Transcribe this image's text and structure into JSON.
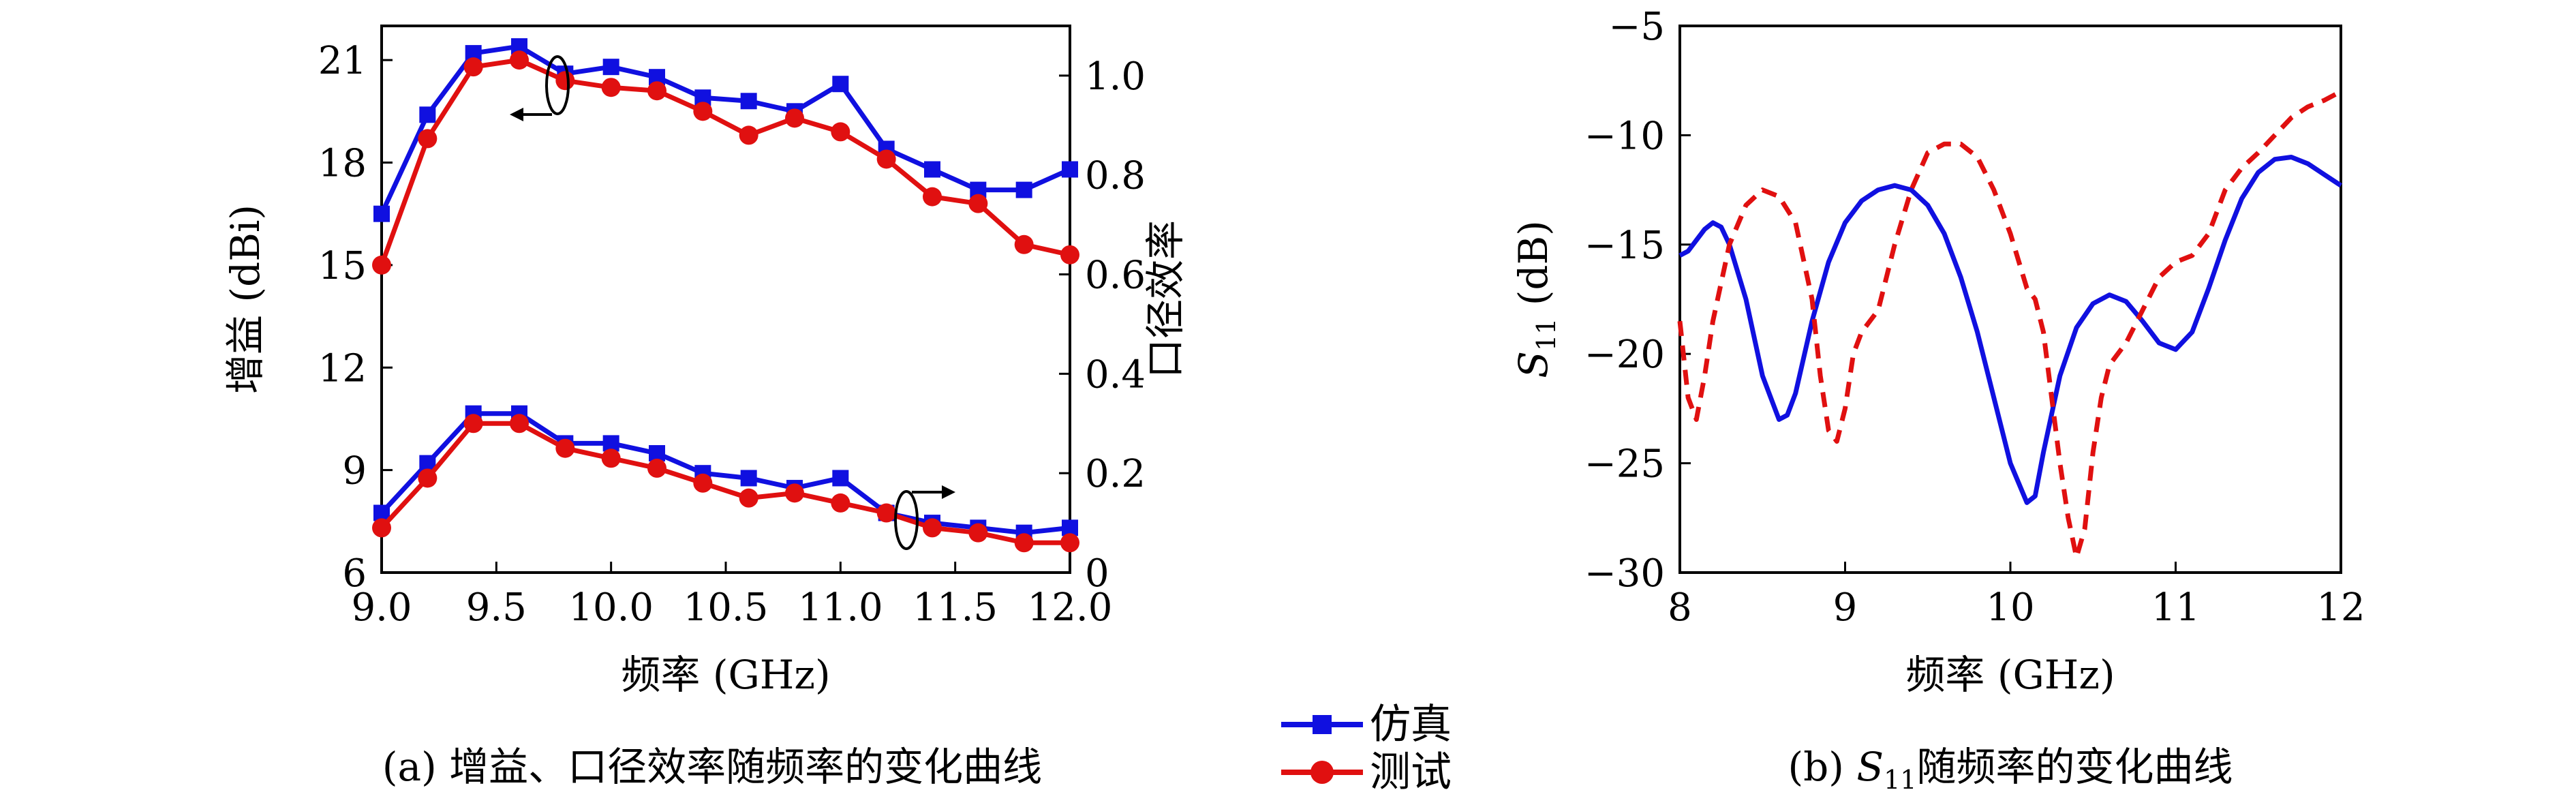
{
  "chart_data": [
    {
      "type": "line",
      "caption": "(a) 增益、口径效率随频率的变化曲线",
      "xlabel": "频率 (GHz)",
      "ylabel": "增益 (dBi)",
      "y2label": "口径效率",
      "xlim": [
        9.0,
        12.0
      ],
      "ylim": [
        6,
        22
      ],
      "y2lim": [
        0,
        1.1
      ],
      "xticks": [
        "9.0",
        "9.5",
        "10.0",
        "10.5",
        "11.0",
        "11.5",
        "12.0"
      ],
      "yticks": [
        "6",
        "9",
        "12",
        "15",
        "18",
        "21"
      ],
      "y2ticks": [
        "0",
        "0.2",
        "0.4",
        "0.6",
        "0.8",
        "1.0"
      ],
      "x": [
        9.0,
        9.2,
        9.4,
        9.6,
        9.8,
        10.0,
        10.2,
        10.4,
        10.6,
        10.8,
        11.0,
        11.2,
        11.4,
        11.6,
        11.8,
        12.0
      ],
      "series": [
        {
          "name": "仿真",
          "axis": "left",
          "color": "#1010e0",
          "marker": "square",
          "values": [
            16.5,
            19.4,
            21.2,
            21.4,
            20.6,
            20.8,
            20.5,
            19.9,
            19.8,
            19.5,
            20.3,
            18.4,
            17.8,
            17.2,
            17.2,
            17.8
          ]
        },
        {
          "name": "测试",
          "axis": "left",
          "color": "#e01010",
          "marker": "circle",
          "values": [
            15.0,
            18.7,
            20.8,
            21.0,
            20.4,
            20.2,
            20.1,
            19.5,
            18.8,
            19.3,
            18.9,
            18.1,
            17.0,
            16.8,
            15.6,
            15.3
          ]
        },
        {
          "name": "仿真",
          "axis": "right",
          "color": "#1010e0",
          "marker": "square",
          "values": [
            0.12,
            0.22,
            0.32,
            0.32,
            0.26,
            0.26,
            0.24,
            0.2,
            0.19,
            0.17,
            0.19,
            0.12,
            0.1,
            0.09,
            0.08,
            0.09
          ]
        },
        {
          "name": "测试",
          "axis": "right",
          "color": "#e01010",
          "marker": "circle",
          "values": [
            0.09,
            0.19,
            0.3,
            0.3,
            0.25,
            0.23,
            0.21,
            0.18,
            0.15,
            0.16,
            0.14,
            0.12,
            0.09,
            0.08,
            0.06,
            0.06
          ]
        }
      ]
    },
    {
      "type": "line",
      "caption": "(b) S11随频率的变化曲线",
      "xlabel": "频率 (GHz)",
      "ylabel": "S11 (dB)",
      "xlim": [
        8,
        12
      ],
      "ylim": [
        -30,
        -5
      ],
      "xticks": [
        "8",
        "9",
        "10",
        "11",
        "12"
      ],
      "yticks": [
        "-5",
        "-10",
        "-15",
        "-20",
        "-25",
        "-30"
      ],
      "series": [
        {
          "name": "仿真",
          "color": "#1010e0",
          "style": "solid",
          "x": [
            8.0,
            8.05,
            8.1,
            8.15,
            8.2,
            8.25,
            8.3,
            8.4,
            8.5,
            8.6,
            8.65,
            8.7,
            8.8,
            8.9,
            9.0,
            9.1,
            9.2,
            9.3,
            9.4,
            9.5,
            9.6,
            9.7,
            9.8,
            9.9,
            10.0,
            10.1,
            10.15,
            10.2,
            10.3,
            10.4,
            10.5,
            10.6,
            10.7,
            10.8,
            10.9,
            11.0,
            11.1,
            11.2,
            11.3,
            11.4,
            11.5,
            11.6,
            11.7,
            11.8,
            11.9,
            12.0
          ],
          "values": [
            -15.5,
            -15.3,
            -14.8,
            -14.3,
            -14.0,
            -14.2,
            -15.0,
            -17.5,
            -21.0,
            -23.0,
            -22.8,
            -21.8,
            -18.5,
            -15.8,
            -14.0,
            -13.0,
            -12.5,
            -12.3,
            -12.5,
            -13.2,
            -14.5,
            -16.5,
            -19.0,
            -22.0,
            -25.0,
            -26.8,
            -26.5,
            -24.5,
            -21.0,
            -18.8,
            -17.7,
            -17.3,
            -17.6,
            -18.5,
            -19.5,
            -19.8,
            -19.0,
            -17.0,
            -14.8,
            -12.9,
            -11.7,
            -11.1,
            -11.0,
            -11.3,
            -11.8,
            -12.3
          ]
        },
        {
          "name": "测试",
          "color": "#e01010",
          "style": "dashed",
          "x": [
            8.0,
            8.05,
            8.1,
            8.15,
            8.2,
            8.3,
            8.4,
            8.5,
            8.6,
            8.7,
            8.8,
            8.85,
            8.9,
            8.95,
            9.0,
            9.05,
            9.1,
            9.2,
            9.3,
            9.4,
            9.5,
            9.6,
            9.7,
            9.8,
            9.9,
            10.0,
            10.1,
            10.15,
            10.2,
            10.25,
            10.3,
            10.35,
            10.4,
            10.45,
            10.5,
            10.55,
            10.6,
            10.7,
            10.8,
            10.9,
            11.0,
            11.1,
            11.2,
            11.3,
            11.4,
            11.5,
            11.6,
            11.7,
            11.8,
            11.9,
            12.0
          ],
          "values": [
            -18.5,
            -22.0,
            -23.0,
            -21.0,
            -18.5,
            -15.0,
            -13.2,
            -12.5,
            -12.8,
            -14.0,
            -17.5,
            -21.0,
            -23.5,
            -24.0,
            -22.5,
            -20.0,
            -19.0,
            -18.0,
            -15.0,
            -12.5,
            -10.8,
            -10.4,
            -10.4,
            -11.0,
            -12.5,
            -14.5,
            -17.0,
            -17.5,
            -19.0,
            -22.0,
            -25.0,
            -27.5,
            -29.3,
            -28.0,
            -24.5,
            -22.0,
            -20.5,
            -19.5,
            -18.0,
            -16.5,
            -15.8,
            -15.5,
            -14.5,
            -12.5,
            -11.5,
            -10.8,
            -10.0,
            -9.2,
            -8.7,
            -8.4,
            -8.0
          ]
        }
      ]
    }
  ],
  "legend": {
    "items": [
      {
        "label": "仿真",
        "color": "#1010e0",
        "marker": "square"
      },
      {
        "label": "测试",
        "color": "#e01010",
        "marker": "circle"
      }
    ]
  }
}
